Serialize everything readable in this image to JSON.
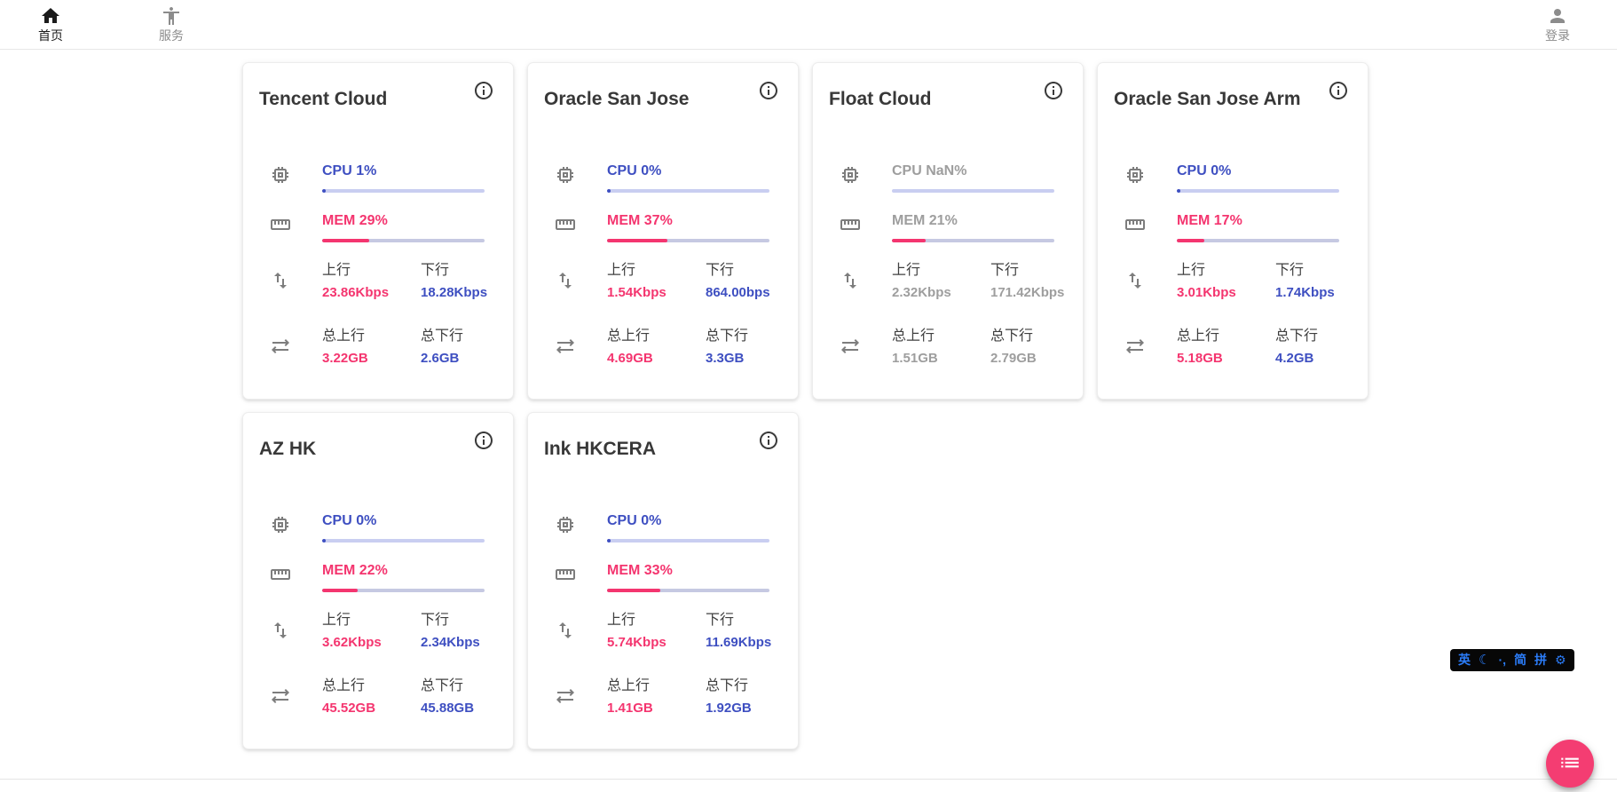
{
  "header": {
    "nav_home": "首页",
    "nav_services": "服务",
    "nav_login": "登录"
  },
  "labels": {
    "up": "上行",
    "down": "下行",
    "total_up": "总上行",
    "total_down": "总下行"
  },
  "cards": [
    {
      "name": "Tencent Cloud",
      "cpu": "CPU 1%",
      "cpu_pct": 1,
      "mem": "MEM 29%",
      "mem_pct": 29,
      "up": "23.86Kbps",
      "down": "18.28Kbps",
      "total_up": "3.22GB",
      "total_down": "2.6GB",
      "muted": false
    },
    {
      "name": "Oracle San Jose",
      "cpu": "CPU 0%",
      "cpu_pct": 0,
      "mem": "MEM 37%",
      "mem_pct": 37,
      "up": "1.54Kbps",
      "down": "864.00bps",
      "total_up": "4.69GB",
      "total_down": "3.3GB",
      "muted": false
    },
    {
      "name": "Float Cloud",
      "cpu": "CPU NaN%",
      "cpu_pct": null,
      "mem": "MEM 21%",
      "mem_pct": 21,
      "up": "2.32Kbps",
      "down": "171.42Kbps",
      "total_up": "1.51GB",
      "total_down": "2.79GB",
      "muted": true
    },
    {
      "name": "Oracle San Jose Arm",
      "cpu": "CPU 0%",
      "cpu_pct": 0,
      "mem": "MEM 17%",
      "mem_pct": 17,
      "up": "3.01Kbps",
      "down": "1.74Kbps",
      "total_up": "5.18GB",
      "total_down": "4.2GB",
      "muted": false
    },
    {
      "name": "AZ HK",
      "cpu": "CPU 0%",
      "cpu_pct": 0,
      "mem": "MEM 22%",
      "mem_pct": 22,
      "up": "3.62Kbps",
      "down": "2.34Kbps",
      "total_up": "45.52GB",
      "total_down": "45.88GB",
      "muted": false
    },
    {
      "name": "Ink HKCERA",
      "cpu": "CPU 0%",
      "cpu_pct": 0,
      "mem": "MEM 33%",
      "mem_pct": 33,
      "up": "5.74Kbps",
      "down": "11.69Kbps",
      "total_up": "1.41GB",
      "total_down": "1.92GB",
      "muted": false
    }
  ],
  "ime": {
    "lang": "英",
    "moon": "☾",
    "punct": "·,",
    "simplified": "简",
    "pinyin": "拼",
    "gear": "⚙"
  },
  "colors": {
    "accent_blue": "#3e4fc1",
    "accent_pink": "#f4356f",
    "muted_gray": "#9e9e9e",
    "cpu_track": "#c9cef1",
    "mem_track": "#c6c9e2",
    "fab_pink": "#f43d72",
    "ime_blue": "#2b7cf8"
  }
}
